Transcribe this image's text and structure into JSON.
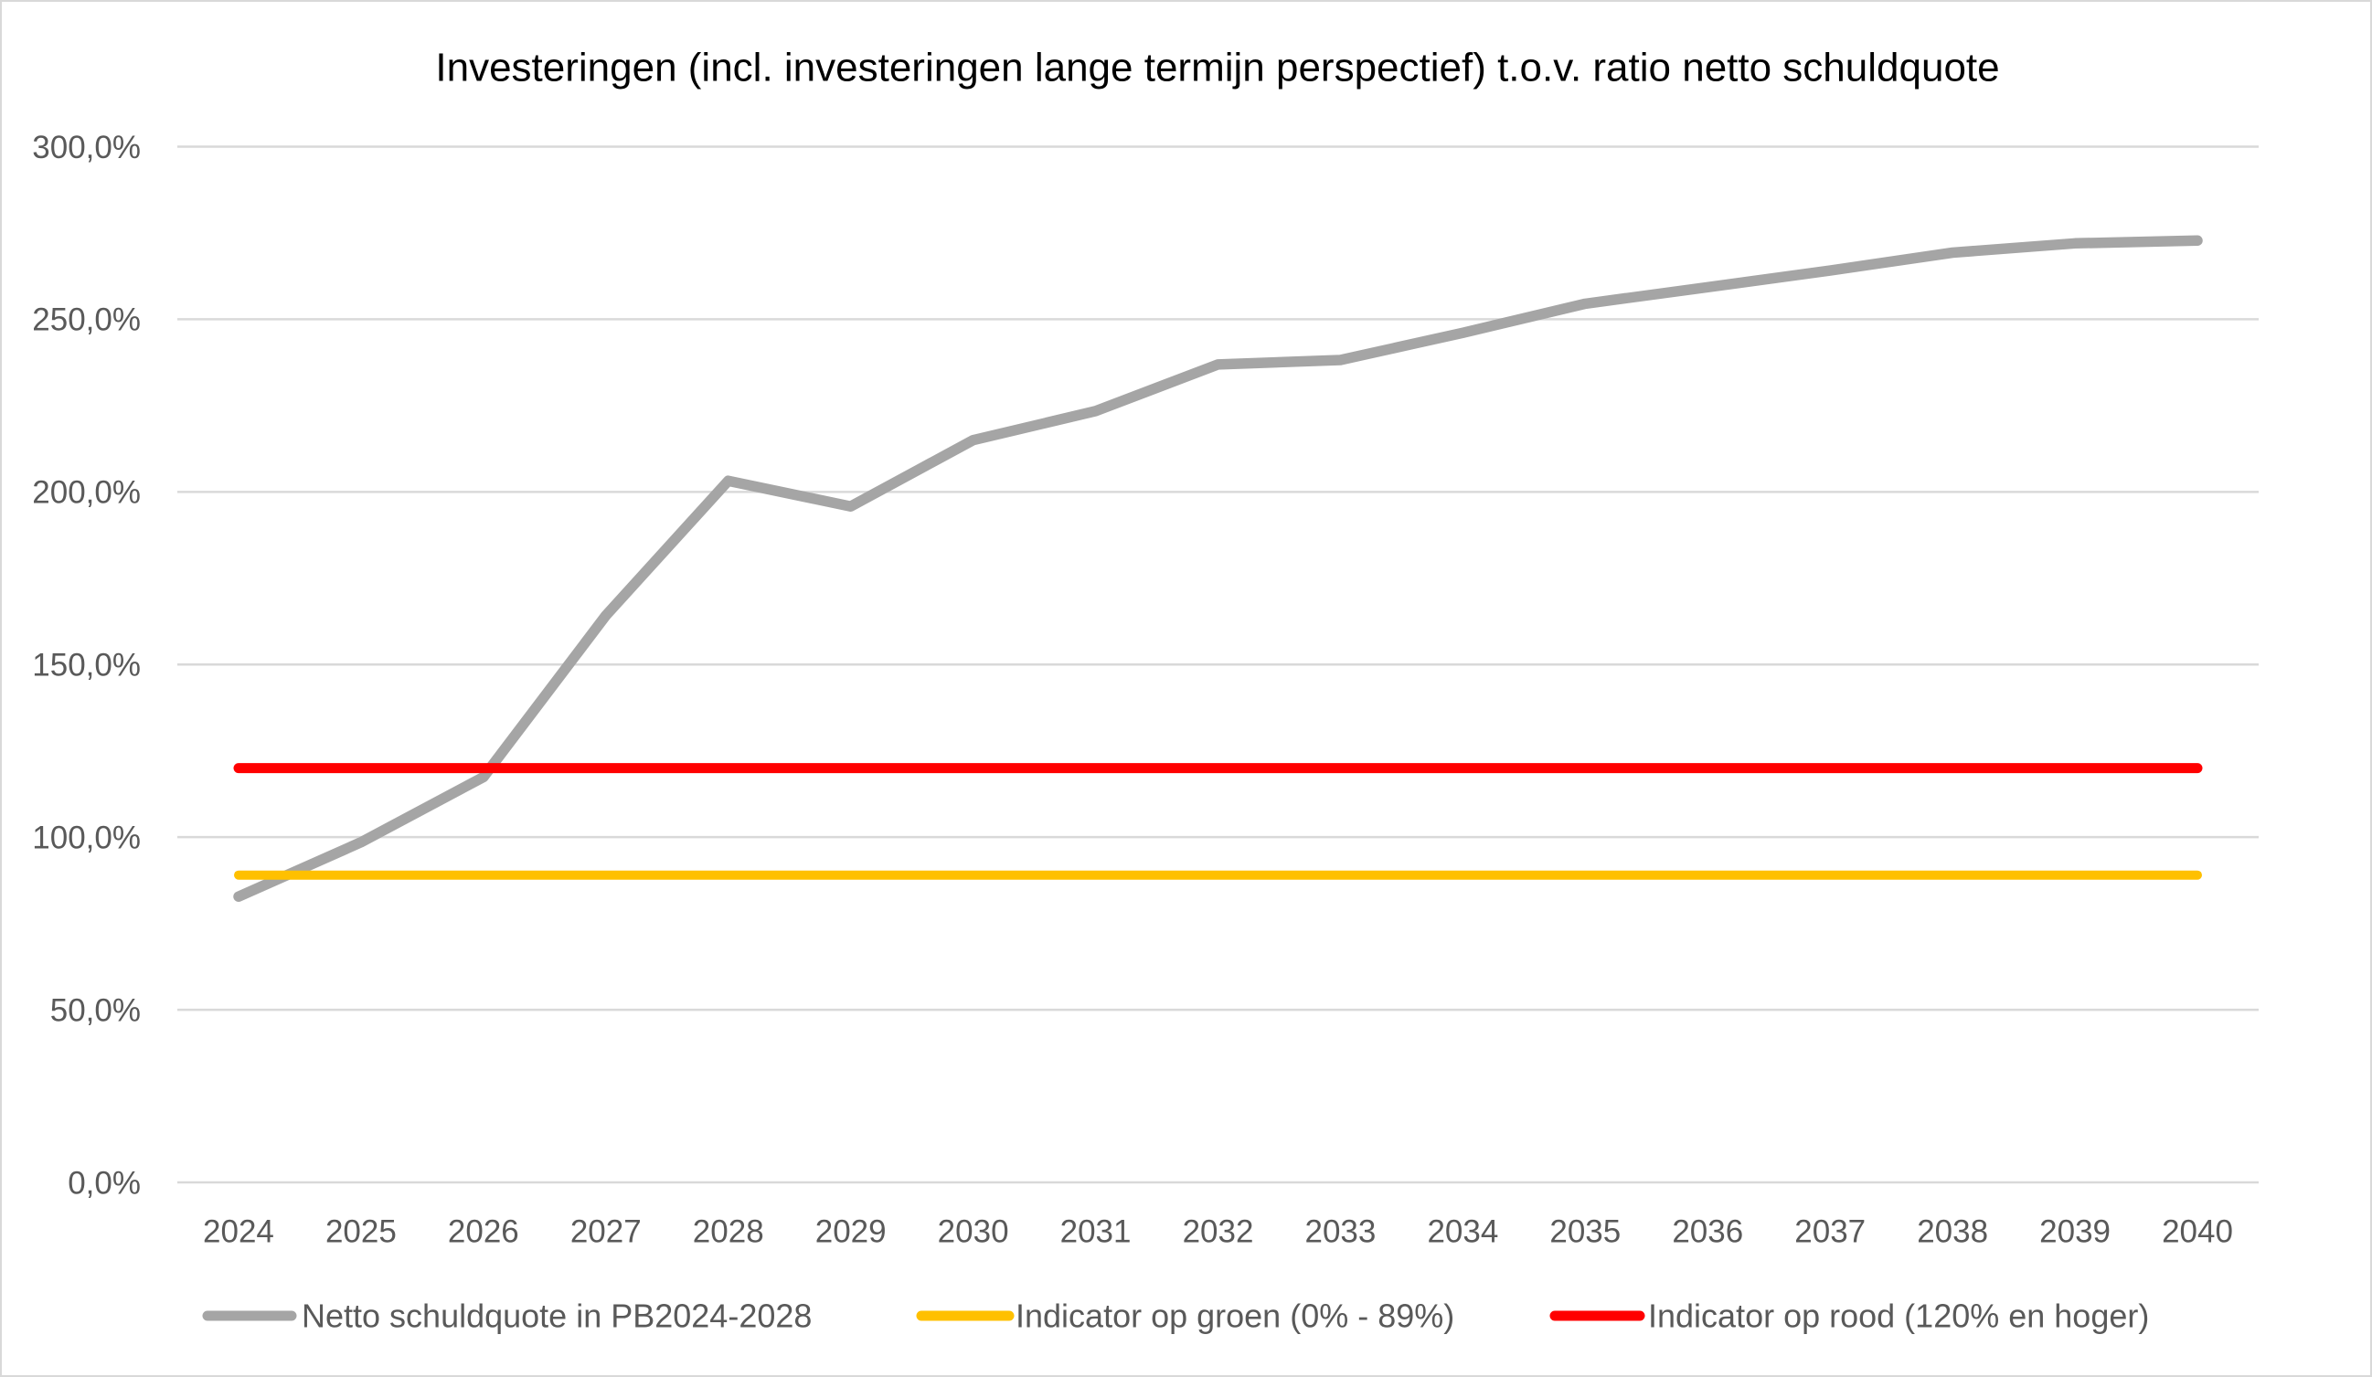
{
  "chart_data": {
    "type": "line",
    "title": "Investeringen (incl. investeringen lange termijn perspectief) t.o.v. ratio netto schuldquote",
    "categories": [
      "2024",
      "2025",
      "2026",
      "2027",
      "2028",
      "2029",
      "2030",
      "2031",
      "2032",
      "2033",
      "2034",
      "2035",
      "2036",
      "2037",
      "2038",
      "2039",
      "2040"
    ],
    "series": [
      {
        "name": "Netto schuldquote in PB2024-2028",
        "color": "#A5A5A5",
        "values": [
          82.8,
          98.5,
          117.4,
          164.2,
          203.2,
          195.8,
          215.0,
          223.4,
          236.9,
          238.2,
          246.1,
          254.5,
          259.3,
          264.1,
          269.3,
          272.0,
          272.8
        ]
      },
      {
        "name": "Indicator op groen (0% - 89%)",
        "color": "#FFC000",
        "values": [
          89,
          89,
          89,
          89,
          89,
          89,
          89,
          89,
          89,
          89,
          89,
          89,
          89,
          89,
          89,
          89,
          89
        ]
      },
      {
        "name": "Indicator op rood (120% en hoger)",
        "color": "#FF0000",
        "values": [
          120,
          120,
          120,
          120,
          120,
          120,
          120,
          120,
          120,
          120,
          120,
          120,
          120,
          120,
          120,
          120,
          120
        ]
      }
    ],
    "yticks": [
      {
        "value": 0,
        "label": "0,0%"
      },
      {
        "value": 50,
        "label": "50,0%"
      },
      {
        "value": 100,
        "label": "100,0%"
      },
      {
        "value": 150,
        "label": "150,0%"
      },
      {
        "value": 200,
        "label": "200,0%"
      },
      {
        "value": 250,
        "label": "250,0%"
      },
      {
        "value": 300,
        "label": "300,0%"
      }
    ],
    "ylim": [
      0,
      300
    ],
    "grid": true,
    "legend": "bottom",
    "gridline_color": "#D9D9D9",
    "border_color": "#D9D9D9"
  }
}
